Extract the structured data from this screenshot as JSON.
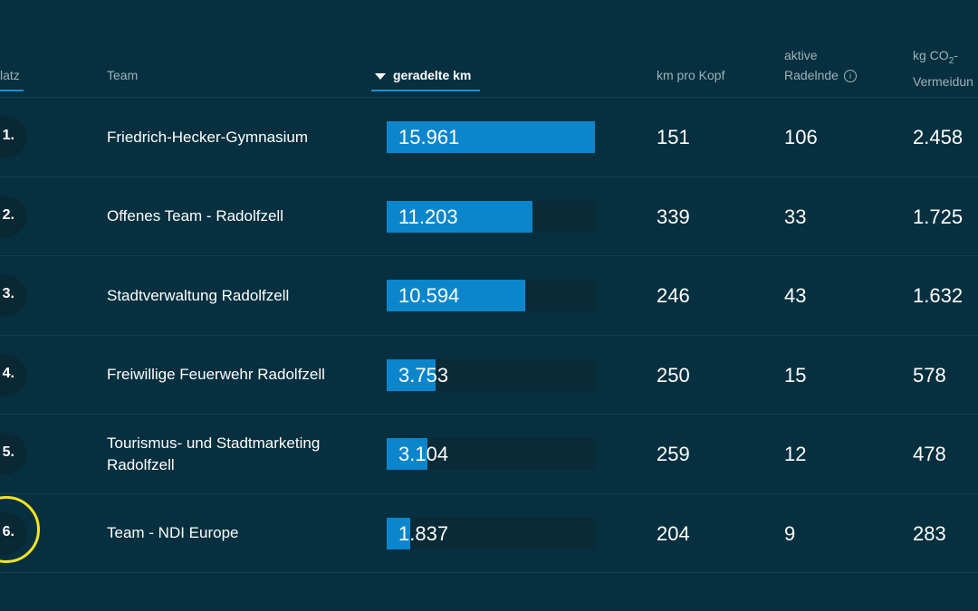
{
  "header": {
    "platz": "latz",
    "team": "Team",
    "sorted": "geradelte km",
    "kopf": "km pro Kopf",
    "aktive_1": "aktive",
    "aktive_2": "Radelnde",
    "co2_1": "kg CO",
    "co2_sub": "2",
    "co2_dash": "-",
    "co2_2": "Vermeidun"
  },
  "rows": [
    {
      "rank": "1.",
      "team": "Friedrich-Hecker-Gymnasium",
      "km": "15.961",
      "km_value": 15961,
      "kopf": "151",
      "aktive": "106",
      "co2": "2.458"
    },
    {
      "rank": "2.",
      "team": "Offenes Team - Radolfzell",
      "km": "11.203",
      "km_value": 11203,
      "kopf": "339",
      "aktive": "33",
      "co2": "1.725"
    },
    {
      "rank": "3.",
      "team": "Stadtverwaltung Radolfzell",
      "km": "10.594",
      "km_value": 10594,
      "kopf": "246",
      "aktive": "43",
      "co2": "1.632"
    },
    {
      "rank": "4.",
      "team": "Freiwillige Feuerwehr Radolfzell",
      "km": "3.753",
      "km_value": 3753,
      "kopf": "250",
      "aktive": "15",
      "co2": "578"
    },
    {
      "rank": "5.",
      "team": "Tourismus- und Stadtmarketing Radolfzell",
      "km": "3.104",
      "km_value": 3104,
      "kopf": "259",
      "aktive": "12",
      "co2": "478"
    },
    {
      "rank": "6.",
      "team": "Team - NDI Europe",
      "km": "1.837",
      "km_value": 1837,
      "kopf": "204",
      "aktive": "9",
      "co2": "283"
    }
  ],
  "bar_max": 15961,
  "colors": {
    "background": "#06303f",
    "bar_fill": "#0b86cc",
    "bar_track": "#0a2a37",
    "highlight": "#f4e323",
    "active_tab_underline": "#1b8ed2"
  }
}
